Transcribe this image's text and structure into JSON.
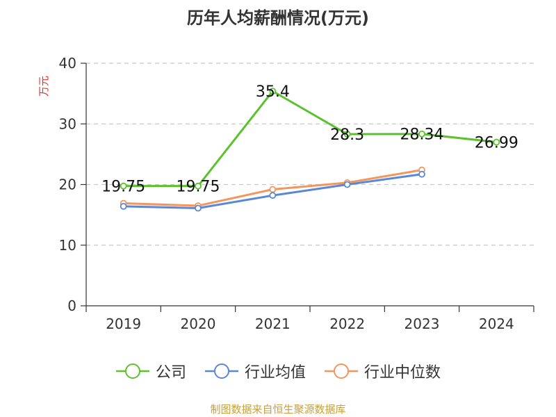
{
  "title": "历年人均薪酬情况(万元)",
  "source": "制图数据来自恒生聚源数据库",
  "chart_data": {
    "type": "line",
    "title": "历年人均薪酬情况(万元)",
    "ylabel": "万元",
    "xlabel": "",
    "categories": [
      "2019",
      "2020",
      "2021",
      "2022",
      "2023",
      "2024"
    ],
    "ylim": [
      0,
      40
    ],
    "yticks": [
      0,
      10,
      20,
      30,
      40
    ],
    "grid": true,
    "legend_position": "bottom",
    "series": [
      {
        "name": "公司",
        "color": "#5bc22e",
        "values": [
          19.75,
          19.75,
          35.4,
          28.3,
          28.34,
          26.99
        ],
        "labels": [
          "19.75",
          "19.75",
          "35.4",
          "28.3",
          "28.34",
          "26.99"
        ]
      },
      {
        "name": "行业均值",
        "color": "#5b87d8",
        "values": [
          16.4,
          16.1,
          18.2,
          20.0,
          21.7,
          null
        ]
      },
      {
        "name": "行业中位数",
        "color": "#f2955e",
        "values": [
          16.9,
          16.5,
          19.2,
          20.3,
          22.4,
          null
        ]
      }
    ]
  }
}
